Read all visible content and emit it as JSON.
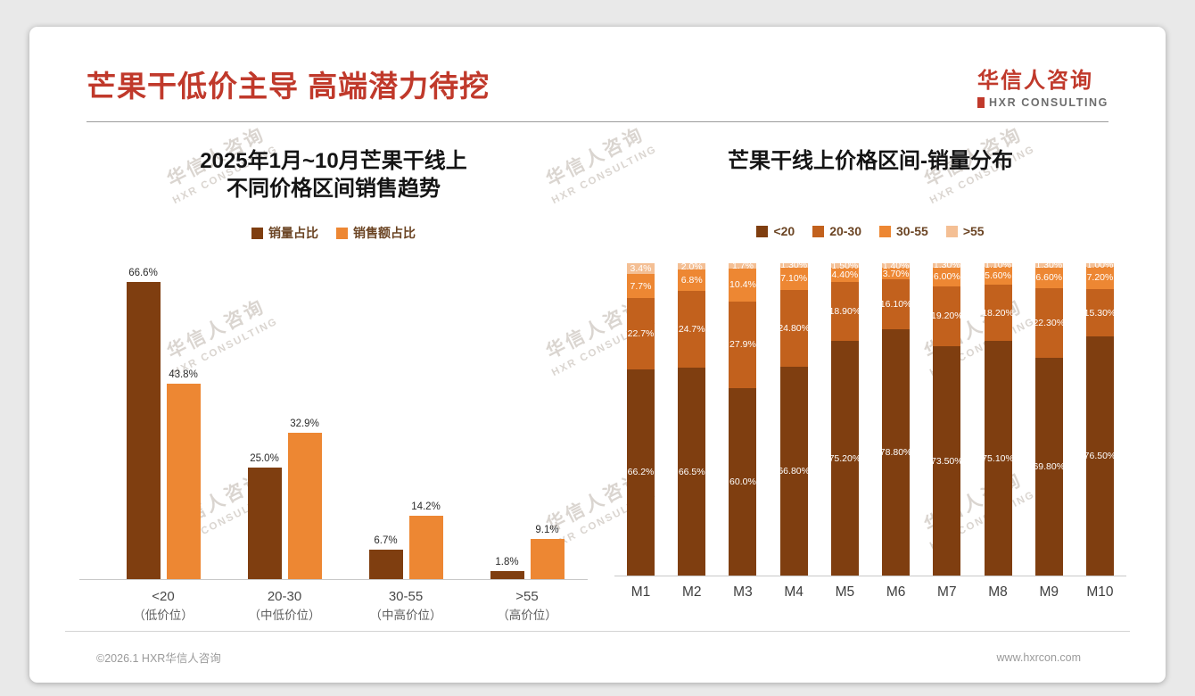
{
  "slide": {
    "title": "芒果干低价主导 高端潜力待挖",
    "logo": {
      "cn": "华信人咨询",
      "en": "HXR CONSULTING"
    },
    "watermark": {
      "line1": "华信人咨询",
      "line2": "HXR CONSULTING",
      "tile_count": 9
    },
    "footer": {
      "copyright": "©2026.1 HXR华信人咨询",
      "website": "www.hxrcon.com"
    }
  },
  "colors": {
    "accent_red": "#c0392b",
    "dark_brown": "#7f3e10",
    "mid_brown": "#c2611d",
    "orange": "#ed8733",
    "light_peach": "#f4bf94",
    "axis_line": "#c9c9c9"
  },
  "chart_data": [
    {
      "type": "bar",
      "title_lines": [
        "2025年1月~10月芒果干线上",
        "不同价格区间销售趋势"
      ],
      "title": "2025年1月~10月芒果干线上不同价格区间销售趋势",
      "legend_position": "top",
      "grid": false,
      "ylim": [
        0,
        70
      ],
      "value_suffix": "%",
      "categories": [
        [
          "<20",
          "（低价位）"
        ],
        [
          "20-30",
          "（中低价位）"
        ],
        [
          "30-55",
          "（中高价位）"
        ],
        [
          ">55",
          "（高价位）"
        ]
      ],
      "series": [
        {
          "name": "销量占比",
          "color": "#7f3e10",
          "values": [
            66.6,
            25.0,
            6.7,
            1.8
          ],
          "labels": [
            "66.6%",
            "25.0%",
            "6.7%",
            "1.8%"
          ]
        },
        {
          "name": "销售额占比",
          "color": "#ed8733",
          "values": [
            43.8,
            32.9,
            14.2,
            9.1
          ],
          "labels": [
            "43.8%",
            "32.9%",
            "14.2%",
            "9.1%"
          ]
        }
      ]
    },
    {
      "type": "stacked-bar-100",
      "title": "芒果干线上价格区间-销量分布",
      "legend_position": "top",
      "grid": false,
      "ylim": [
        0,
        100
      ],
      "value_suffix": "%",
      "categories": [
        "M1",
        "M2",
        "M3",
        "M4",
        "M5",
        "M6",
        "M7",
        "M8",
        "M9",
        "M10"
      ],
      "series": [
        {
          "name": "<20",
          "color": "#7f3e10",
          "values": [
            66.2,
            66.5,
            60.0,
            66.8,
            75.2,
            78.8,
            73.5,
            75.1,
            69.8,
            76.5
          ],
          "labels": [
            "66.2%",
            "66.5%",
            "60.0%",
            "66.80%",
            "75.20%",
            "78.80%",
            "73.50%",
            "75.10%",
            "69.80%",
            "76.50%"
          ]
        },
        {
          "name": "20-30",
          "color": "#c2611d",
          "values": [
            22.7,
            24.7,
            27.9,
            24.8,
            18.9,
            16.1,
            19.2,
            18.2,
            22.3,
            15.3
          ],
          "labels": [
            "22.7%",
            "24.7%",
            "27.9%",
            "24.80%",
            "18.90%",
            "16.10%",
            "19.20%",
            "18.20%",
            "22.30%",
            "15.30%"
          ]
        },
        {
          "name": "30-55",
          "color": "#ed8733",
          "values": [
            7.7,
            6.8,
            10.4,
            7.1,
            4.4,
            3.7,
            6.0,
            5.6,
            6.6,
            7.2
          ],
          "labels": [
            "7.7%",
            "6.8%",
            "10.4%",
            "7.10%",
            "4.40%",
            "3.70%",
            "6.00%",
            "5.60%",
            "6.60%",
            "7.20%"
          ]
        },
        {
          "name": ">55",
          "color": "#f4bf94",
          "values": [
            3.4,
            2.0,
            1.7,
            1.3,
            1.5,
            1.4,
            1.3,
            1.1,
            1.3,
            1.0
          ],
          "labels": [
            "3.4%",
            "2.0%",
            "1.7%",
            "1.30%",
            "1.50%",
            "1.40%",
            "1.30%",
            "1.10%",
            "1.30%",
            "1.00%"
          ]
        }
      ]
    }
  ]
}
